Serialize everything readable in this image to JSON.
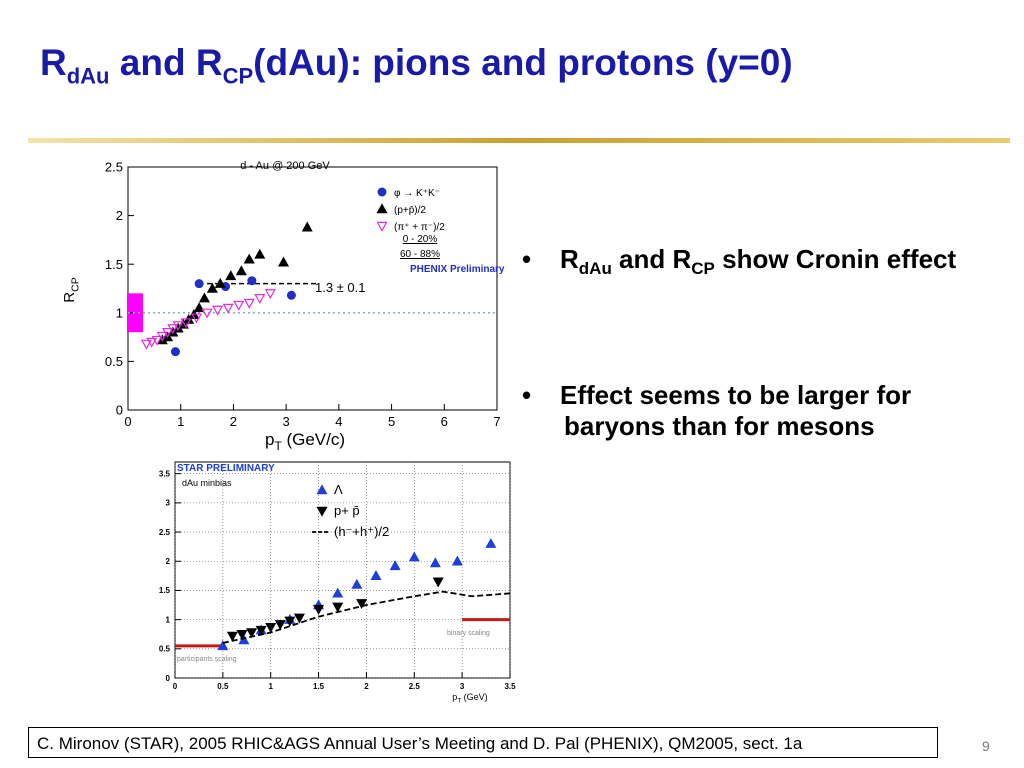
{
  "title": {
    "parts": [
      "R",
      "dAu",
      " and R",
      "CP",
      "(dAu): pions and protons (y=0)"
    ]
  },
  "bullets": [
    {
      "parts": [
        "R",
        "dAu",
        " and R",
        "CP",
        " show Cronin effect"
      ]
    },
    {
      "parts": [
        "Effect seems to be larger for baryons than for mesons"
      ]
    }
  ],
  "footer": "C. Mironov (STAR), 2005 RHIC&AGS Annual User’s Meeting and D. Pal (PHENIX), QM2005, sect. 1a",
  "page_number": "9",
  "chart_data": [
    {
      "type": "scatter",
      "title": "d - Au @ 200 GeV",
      "xlabel": {
        "parts": [
          "p",
          "T",
          " (GeV/c)"
        ]
      },
      "ylabel": {
        "parts": [
          "R",
          "CP"
        ]
      },
      "xlim": [
        0,
        7
      ],
      "xticks": [
        0,
        1,
        2,
        3,
        4,
        5,
        6,
        7
      ],
      "ylim": [
        0,
        2.5
      ],
      "yticks": [
        0,
        0.5,
        1,
        1.5,
        2,
        2.5
      ],
      "grid": false,
      "series": [
        {
          "name": "φ → K⁺K⁻",
          "color": "#1f2fc8",
          "marker": "circle",
          "x": [
            0.9,
            1.35,
            1.85,
            2.35,
            3.1
          ],
          "values": [
            0.6,
            1.3,
            1.27,
            1.33,
            1.18
          ]
        },
        {
          "name": "(p+p̄)/2",
          "color": "#000000",
          "marker": "triangle",
          "x": [
            0.65,
            0.75,
            0.85,
            0.95,
            1.05,
            1.15,
            1.25,
            1.35,
            1.45,
            1.6,
            1.75,
            1.95,
            2.15,
            2.3,
            2.5,
            2.95,
            3.4
          ],
          "values": [
            0.72,
            0.75,
            0.8,
            0.84,
            0.88,
            0.93,
            0.98,
            1.05,
            1.15,
            1.25,
            1.3,
            1.38,
            1.43,
            1.55,
            1.6,
            1.52,
            1.88
          ]
        },
        {
          "name": "(π⁺ + π⁻)/2",
          "color": "#e02ce0",
          "marker": "down-open",
          "x": [
            0.35,
            0.45,
            0.55,
            0.65,
            0.75,
            0.85,
            0.95,
            1.1,
            1.3,
            1.5,
            1.7,
            1.9,
            2.1,
            2.3,
            2.5,
            2.7
          ],
          "values": [
            0.68,
            0.7,
            0.72,
            0.76,
            0.8,
            0.84,
            0.87,
            0.9,
            0.95,
            1.0,
            1.03,
            1.05,
            1.08,
            1.1,
            1.15,
            1.2
          ]
        }
      ],
      "legend_notes": [
        "0 - 20%",
        "60 - 88%"
      ],
      "annotations": [
        "PHENIX Preliminary",
        "1.3 ± 0.1"
      ],
      "reference_lines": [
        {
          "value": 1,
          "color": "#8aa8d8",
          "style": "dotted"
        },
        {
          "value": 1.3,
          "color": "#000000",
          "style": "dashed",
          "x": [
            1.5,
            3.6
          ]
        }
      ]
    },
    {
      "type": "scatter",
      "xlabel": {
        "parts": [
          "p",
          "T",
          " (GeV)"
        ]
      },
      "xlim": [
        0,
        3.5
      ],
      "xticks": [
        0,
        0.5,
        1,
        1.5,
        2,
        2.5,
        3,
        3.5
      ],
      "ylim": [
        0,
        3.7
      ],
      "yticks": [
        0,
        0.5,
        1,
        1.5,
        2,
        2.5,
        3,
        3.5
      ],
      "grid": true,
      "series": [
        {
          "name": "Λ",
          "color": "#1f3fd8",
          "marker": "triangle",
          "x": [
            0.5,
            0.72,
            0.9,
            1.2,
            1.5,
            1.7,
            1.9,
            2.1,
            2.3,
            2.5,
            2.72,
            2.95,
            3.3
          ],
          "values": [
            0.55,
            0.65,
            0.82,
            1.0,
            1.25,
            1.45,
            1.6,
            1.75,
            1.92,
            2.07,
            1.97,
            2.0,
            2.3
          ]
        },
        {
          "name": "p+ p̄",
          "color": "#000000",
          "marker": "down",
          "x": [
            0.6,
            0.7,
            0.8,
            0.9,
            1.0,
            1.1,
            1.2,
            1.3,
            1.5,
            1.7,
            1.95,
            2.75
          ],
          "values": [
            0.72,
            0.75,
            0.78,
            0.82,
            0.87,
            0.92,
            0.98,
            1.03,
            1.18,
            1.22,
            1.28,
            1.65
          ]
        },
        {
          "name": "(h⁻+h⁺)/2",
          "color": "#000000",
          "marker": "line",
          "x": [
            0.5,
            1,
            1.5,
            2,
            2.5,
            2.8,
            3.1,
            3.5
          ],
          "values": [
            0.6,
            0.78,
            1.05,
            1.25,
            1.4,
            1.48,
            1.4,
            1.45
          ]
        }
      ],
      "annotations": [
        "STAR PRELIMINARY",
        "dAu minbias",
        "binary scaling",
        "participants scaling"
      ],
      "reference_lines": [
        {
          "value": 1,
          "color": "#c81818",
          "style": "solid",
          "x": [
            3,
            3.5
          ]
        },
        {
          "value": 0.55,
          "color": "#c81818",
          "style": "solid",
          "x": [
            0,
            0.5
          ]
        }
      ]
    }
  ]
}
